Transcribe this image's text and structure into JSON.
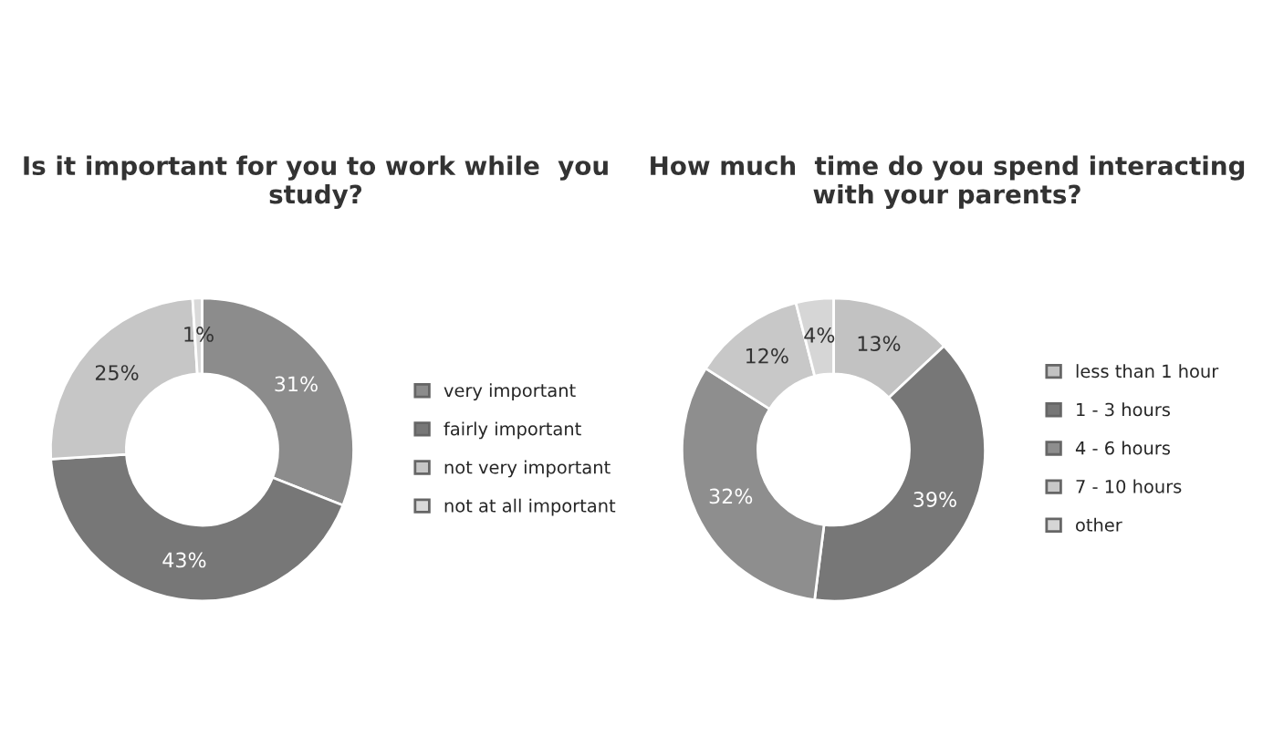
{
  "chart_data": [
    {
      "type": "donut",
      "title": "Is it important for you to work while  you study?",
      "categories": [
        "very important",
        "fairly important",
        "not very important",
        "not at all important"
      ],
      "values": [
        31,
        43,
        25,
        1
      ],
      "value_labels": [
        "31%",
        "43%",
        "25%",
        "1%"
      ],
      "colors": [
        "#8c8c8c",
        "#777777",
        "#c6c6c6",
        "#d9d9d9"
      ],
      "legend": "right"
    },
    {
      "type": "donut",
      "title": "How much  time do you spend interacting with your parents?",
      "categories": [
        "less than 1 hour",
        "1 - 3 hours",
        "4 - 6 hours",
        "7 - 10 hours",
        "other"
      ],
      "values": [
        13,
        39,
        32,
        12,
        4
      ],
      "value_labels": [
        "13%",
        "39%",
        "32%",
        "12%",
        "4%"
      ],
      "colors": [
        "#c2c2c2",
        "#777777",
        "#8e8e8e",
        "#c8c8c8",
        "#d6d6d6"
      ],
      "legend": "right"
    }
  ]
}
